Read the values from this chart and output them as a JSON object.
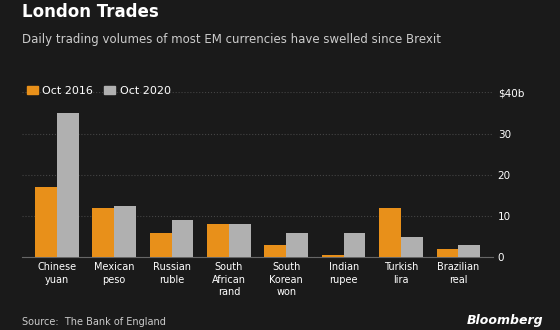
{
  "title": "London Trades",
  "subtitle": "Daily trading volumes of most EM currencies have swelled since Brexit",
  "categories": [
    "Chinese\nyuan",
    "Mexican\npeso",
    "Russian\nruble",
    "South\nAfrican\nrand",
    "South\nKorean\nwon",
    "Indian\nrupee",
    "Turkish\nlira",
    "Brazilian\nreal"
  ],
  "oct2016": [
    17.0,
    12.0,
    6.0,
    8.0,
    3.0,
    0.5,
    12.0,
    2.0
  ],
  "oct2020": [
    35.0,
    12.5,
    9.0,
    8.2,
    6.0,
    6.0,
    5.0,
    3.0
  ],
  "color_2016": "#E8901A",
  "color_2020": "#B0B0B0",
  "background_color": "#1a1a1a",
  "text_color": "#FFFFFF",
  "subtitle_color": "#CCCCCC",
  "ylim": [
    0,
    40
  ],
  "yticks": [
    0,
    10,
    20,
    30,
    40
  ],
  "ytick_labels": [
    "0",
    "10",
    "20",
    "30",
    "$40b"
  ],
  "source_text": "Source:  The Bank of England",
  "legend_labels": [
    "Oct 2016",
    "Oct 2020"
  ],
  "grid_color": "#444444",
  "title_fontsize": 12,
  "subtitle_fontsize": 8.5,
  "bar_width": 0.38
}
